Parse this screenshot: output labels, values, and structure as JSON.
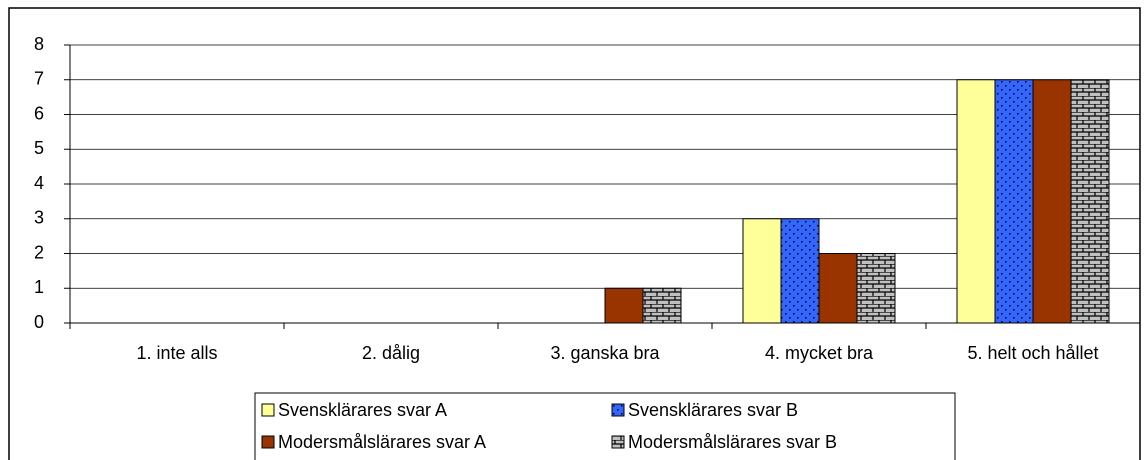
{
  "chart_data": {
    "type": "bar",
    "categories": [
      "1. inte alls",
      "2. dålig",
      "3. ganska bra",
      "4. mycket bra",
      "5. helt och hållet"
    ],
    "series": [
      {
        "name": "Svensklärares svar A",
        "color": "#ffff99",
        "values": [
          0,
          0,
          0,
          3,
          7
        ]
      },
      {
        "name": "Svensklärares svar B",
        "color": "#3366ff",
        "pattern": "dots",
        "values": [
          0,
          0,
          0,
          3,
          7
        ]
      },
      {
        "name": "Modersmålslärares svar A",
        "color": "#993300",
        "values": [
          0,
          0,
          1,
          2,
          7
        ]
      },
      {
        "name": "Modersmålslärares svar B",
        "color": "#c0c0c0",
        "pattern": "bricks",
        "values": [
          0,
          0,
          1,
          2,
          7
        ]
      }
    ],
    "ylim": [
      0,
      8
    ],
    "yticks": [
      0,
      1,
      2,
      3,
      4,
      5,
      6,
      7,
      8
    ],
    "grid": true,
    "legend": "bottom"
  }
}
